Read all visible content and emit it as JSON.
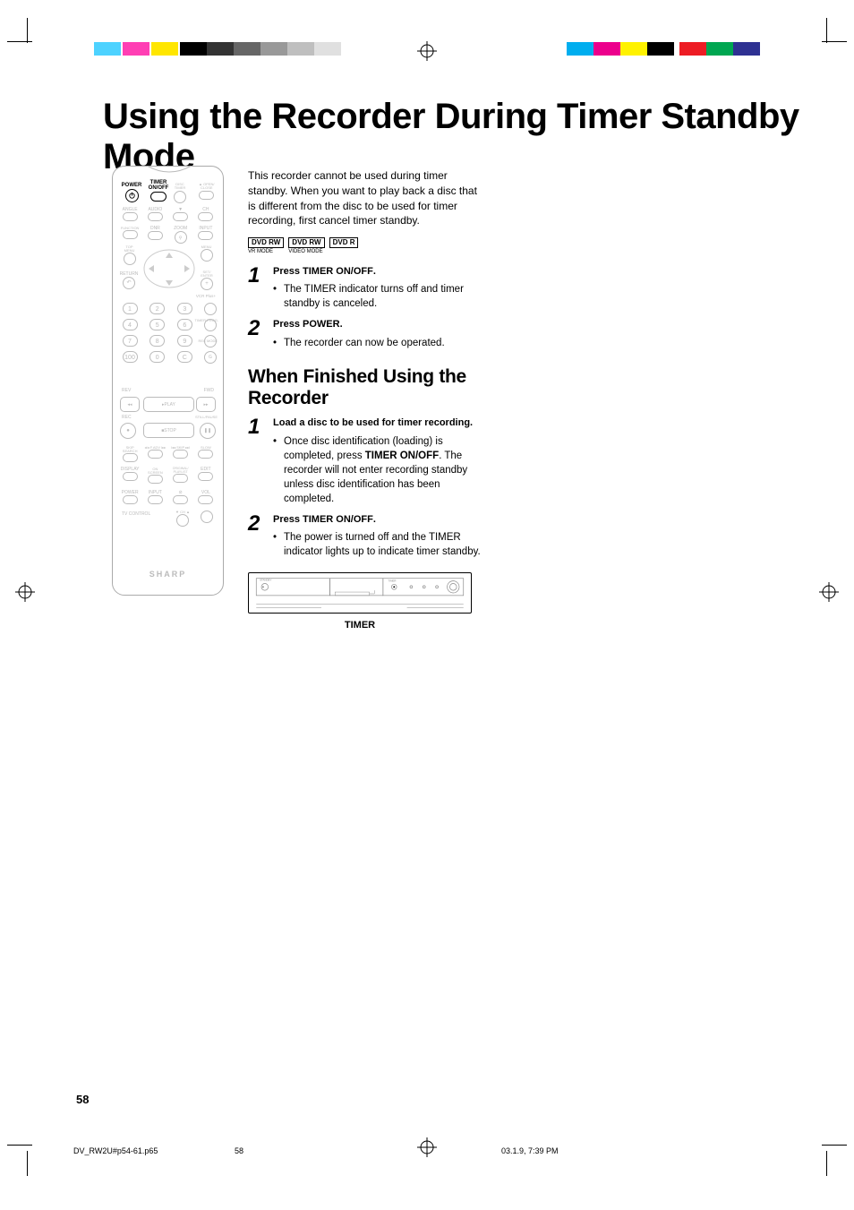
{
  "crop_colors_left": [
    "#4dd2ff",
    "#ff3fb4",
    "#ffe600",
    "#000000",
    "#000000",
    "#000000",
    "#000000",
    "#000000",
    "#000000"
  ],
  "crop_colors_left_opacity": [
    1,
    1,
    1,
    1,
    0.8,
    0.6,
    0.4,
    0.25,
    0.12
  ],
  "crop_colors_right": [
    "#00aeef",
    "#ec008c",
    "#fff200",
    "#000000",
    "#ed1c24",
    "#00a651",
    "#2e3192"
  ],
  "title": "Using the Recorder During Timer Standby Mode",
  "intro": "This recorder cannot be used during timer standby. When you want to play back a disc that is different from the disc to be used for timer recording, first cancel timer standby.",
  "badges": [
    {
      "label": "DVD RW",
      "sub": "VR MODE"
    },
    {
      "label": "DVD RW",
      "sub": "VIDEO MODE"
    },
    {
      "label": "DVD R",
      "sub": ""
    }
  ],
  "steps_a": [
    {
      "num": "1",
      "press_label": "Press ",
      "press_key": "TIMER ON/OFF",
      "press_suffix": ".",
      "bullets": [
        "The TIMER indicator turns off and timer standby is canceled."
      ]
    },
    {
      "num": "2",
      "press_label": "Press ",
      "press_key": "POWER",
      "press_suffix": ".",
      "bullets": [
        "The recorder can now be operated."
      ]
    }
  ],
  "section2_title": "When Finished Using the Recorder",
  "steps_b": [
    {
      "num": "1",
      "bold_line": "Load a disc to be used for timer recording.",
      "bullets": [
        "Once disc identification (loading) is completed, press TIMER ON/OFF. The recorder will not enter recording standby unless disc identification has been completed."
      ],
      "bold_in_bullet": "TIMER ON/OFF"
    },
    {
      "num": "2",
      "press_label": "Press ",
      "press_key": "TIMER ON/OFF",
      "press_suffix": ".",
      "bullets": [
        "The power is turned off and the TIMER indicator lights up to indicate timer standby."
      ]
    }
  ],
  "device_caption": "TIMER",
  "remote": {
    "power_label": "POWER",
    "timer_label": "TIMER\nON/OFF",
    "row1_labels": [
      "ANGLE",
      "AUDIO",
      "",
      "CH"
    ],
    "row2_labels": [
      "FUNCTION",
      "DNR",
      "ZOOM",
      "INPUT"
    ],
    "dpad_left": "RETURN",
    "dpad_right": "SET/\nENTER",
    "vcr_label": "VCR Plus+",
    "nums": [
      "1",
      "2",
      "3",
      "4",
      "5",
      "6",
      "7",
      "8",
      "9",
      "100",
      "0",
      "C"
    ],
    "timer_prog": "TIMER PROG.",
    "rec_mode": "REC MODE",
    "erase": "ERASE",
    "program": "PROGRAM",
    "am_pm": "AM/PM",
    "rev": "REV",
    "fwd": "FWD",
    "play": "PLAY",
    "rec": "REC",
    "stop": "STOP",
    "pause": "STILL/PAUSE",
    "bottom_row1": [
      "SKIP\nSEARCH",
      "F.ADV",
      "",
      "SLOW"
    ],
    "bottom_row2": [
      "DISPLAY",
      "SCREEN",
      "ORIGINAL/\nPLAYLIST",
      "EDIT"
    ],
    "bottom_row3": [
      "POWER",
      "INPUT",
      "",
      "VOL"
    ],
    "tv_control": "TV CONTROL",
    "brand": "SHARP"
  },
  "page_number": "58",
  "footer": {
    "file": "DV_RW2U#p54-61.p65",
    "page": "58",
    "datetime": "03.1.9, 7:39 PM"
  }
}
